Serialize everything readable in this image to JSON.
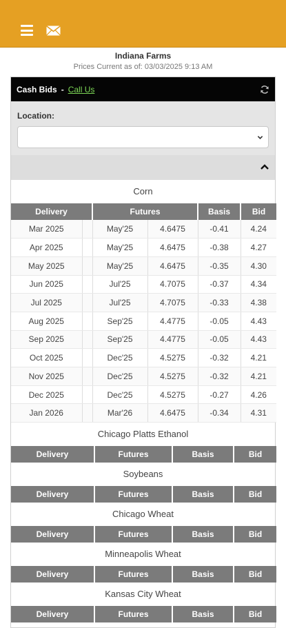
{
  "header": {
    "menu_icon": "hamburger-icon",
    "mail_icon": "envelope-icon",
    "bg_color": "#e5a023"
  },
  "company_name": "Indiana Farms",
  "prices_current": "Prices Current as of: 03/03/2025 9:13 AM",
  "panel": {
    "title": "Cash Bids",
    "separator": "-",
    "call_us": "Call Us",
    "refresh_icon": "refresh-icon"
  },
  "location": {
    "label": "Location:",
    "selected_value": ""
  },
  "columns": {
    "delivery": "Delivery",
    "futures": "Futures",
    "basis": "Basis",
    "bid": "Bid"
  },
  "corn": {
    "name": "Corn",
    "rows": [
      {
        "delivery": "Mar 2025",
        "month": "May'25",
        "futures": "4.6475",
        "basis": "-0.41",
        "bid": "4.24"
      },
      {
        "delivery": "Apr 2025",
        "month": "May'25",
        "futures": "4.6475",
        "basis": "-0.38",
        "bid": "4.27"
      },
      {
        "delivery": "May 2025",
        "month": "May'25",
        "futures": "4.6475",
        "basis": "-0.35",
        "bid": "4.30"
      },
      {
        "delivery": "Jun 2025",
        "month": "Jul'25",
        "futures": "4.7075",
        "basis": "-0.37",
        "bid": "4.34"
      },
      {
        "delivery": "Jul 2025",
        "month": "Jul'25",
        "futures": "4.7075",
        "basis": "-0.33",
        "bid": "4.38"
      },
      {
        "delivery": "Aug 2025",
        "month": "Sep'25",
        "futures": "4.4775",
        "basis": "-0.05",
        "bid": "4.43"
      },
      {
        "delivery": "Sep 2025",
        "month": "Sep'25",
        "futures": "4.4775",
        "basis": "-0.05",
        "bid": "4.43"
      },
      {
        "delivery": "Oct 2025",
        "month": "Dec'25",
        "futures": "4.5275",
        "basis": "-0.32",
        "bid": "4.21"
      },
      {
        "delivery": "Nov 2025",
        "month": "Dec'25",
        "futures": "4.5275",
        "basis": "-0.32",
        "bid": "4.21"
      },
      {
        "delivery": "Dec 2025",
        "month": "Dec'25",
        "futures": "4.5275",
        "basis": "-0.27",
        "bid": "4.26"
      },
      {
        "delivery": "Jan 2026",
        "month": "Mar'26",
        "futures": "4.6475",
        "basis": "-0.34",
        "bid": "4.31"
      }
    ]
  },
  "other_commodities": [
    {
      "name": "Chicago Platts Ethanol"
    },
    {
      "name": "Soybeans"
    },
    {
      "name": "Chicago Wheat"
    },
    {
      "name": "Minneapolis Wheat"
    },
    {
      "name": "Kansas City Wheat"
    }
  ]
}
